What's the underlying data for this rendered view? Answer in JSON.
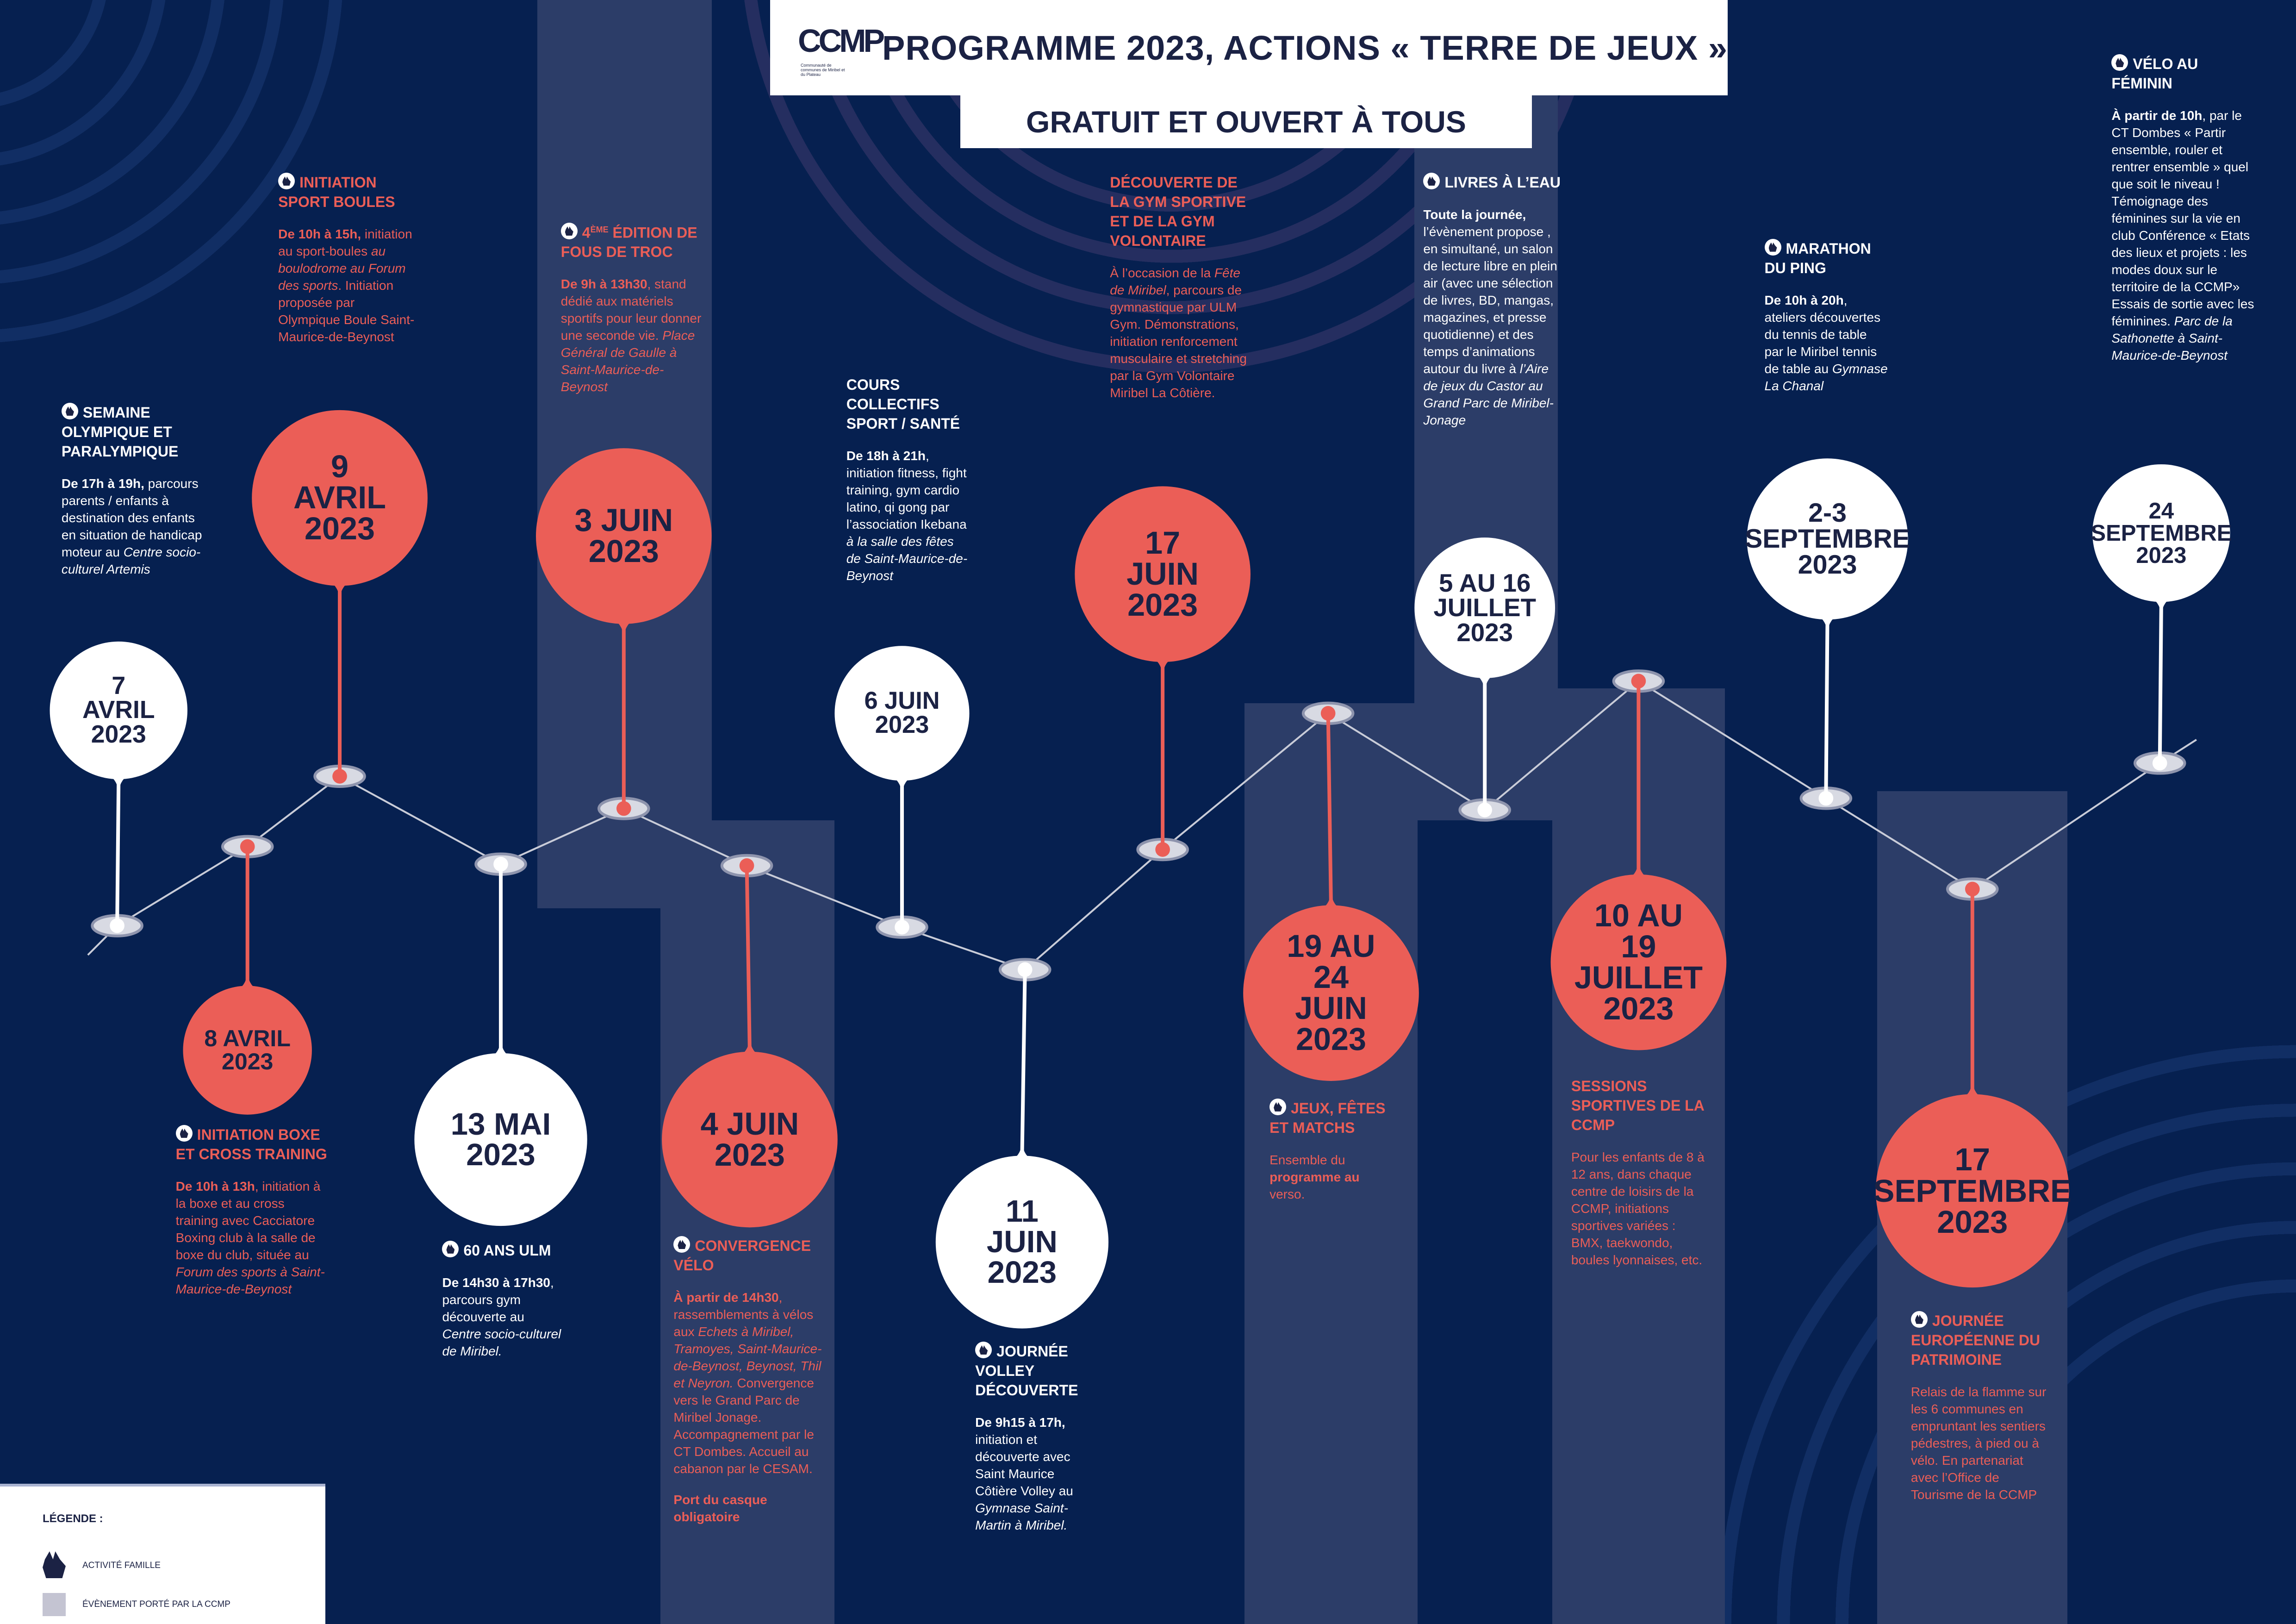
{
  "header": {
    "logo_text": "CCMP",
    "logo_subtext": "Communauté de communes de Miribel et du Plateau",
    "title": "PROGRAMME 2023, ACTIONS « TERRE DE JEUX »",
    "subtitle": "GRATUIT ET OUVERT À TOUS"
  },
  "colors": {
    "background": "#062050",
    "band": "#2c3d68",
    "coral": "#eb5e57",
    "white": "#ffffff",
    "dark": "#1b2244"
  },
  "dates": [
    {
      "lines": [
        "7",
        "AVRIL",
        "2023"
      ],
      "color": "white"
    },
    {
      "lines": [
        "8 AVRIL",
        "2023"
      ],
      "color": "coral"
    },
    {
      "lines": [
        "9",
        "AVRIL",
        "2023"
      ],
      "color": "coral"
    },
    {
      "lines": [
        "13 MAI",
        "2023"
      ],
      "color": "white"
    },
    {
      "lines": [
        "3 JUIN",
        "2023"
      ],
      "color": "coral"
    },
    {
      "lines": [
        "4 JUIN",
        "2023"
      ],
      "color": "coral"
    },
    {
      "lines": [
        "6 JUIN",
        "2023"
      ],
      "color": "white"
    },
    {
      "lines": [
        "11",
        "JUIN",
        "2023"
      ],
      "color": "white"
    },
    {
      "lines": [
        "17",
        "JUIN",
        "2023"
      ],
      "color": "coral"
    },
    {
      "lines": [
        "19 AU",
        "24",
        "JUIN",
        "2023"
      ],
      "color": "coral"
    },
    {
      "lines": [
        "5 AU 16",
        "JUILLET",
        "2023"
      ],
      "color": "white"
    },
    {
      "lines": [
        "10 AU",
        "19",
        "JUILLET",
        "2023"
      ],
      "color": "coral"
    },
    {
      "lines": [
        "2-3",
        "SEPTEMBRE",
        "2023"
      ],
      "color": "white"
    },
    {
      "lines": [
        "17",
        "SEPTEMBRE",
        "2023"
      ],
      "color": "coral"
    },
    {
      "lines": [
        "24",
        "SEPTEMBRE",
        "2023"
      ],
      "color": "white"
    }
  ],
  "activities": [
    {
      "title": "SEMAINE OLYMPIQUE ET PARALYMPIQUE",
      "family": true,
      "color": "white",
      "body": [
        {
          "s": "b",
          "t": "De 17h à 19h,"
        },
        {
          "t": " parcours parents / enfants à destination des enfants en situation de handicap moteur au "
        },
        {
          "s": "i",
          "t": "Centre socio-culturel Artemis"
        }
      ]
    },
    {
      "title": "INITIATION SPORT BOULES",
      "family": true,
      "color": "coral",
      "body": [
        {
          "s": "b",
          "t": "De 10h à 15h,"
        },
        {
          "t": " initiation au sport-boules "
        },
        {
          "s": "i",
          "t": "au boulodrome au Forum des sports"
        },
        {
          "t": ". Initiation proposée par Olympique Boule Saint-Maurice-de-Beynost"
        }
      ]
    },
    {
      "title_prefix": "4",
      "title_sup": "ÈME",
      "title": " ÉDITION DE FOUS DE TROC",
      "family": true,
      "color": "coral",
      "body": [
        {
          "s": "b",
          "t": "De 9h à 13h30"
        },
        {
          "t": ", stand dédié aux matériels sportifs pour leur donner une seconde vie. "
        },
        {
          "s": "i",
          "t": "Place Général de Gaulle à Saint-Maurice-de-Beynost"
        }
      ]
    },
    {
      "title": "COURS COLLECTIFS SPORT / SANTÉ",
      "family": false,
      "color": "white",
      "body": [
        {
          "s": "b",
          "t": "De 18h à 21h"
        },
        {
          "t": ", initiation fitness, fight training, gym cardio latino, qi gong par l’association Ikebana "
        },
        {
          "s": "i",
          "t": "à la salle des fêtes de Saint-Maurice-de-Beynost"
        }
      ]
    },
    {
      "title": "DÉCOUVERTE DE LA GYM SPORTIVE ET DE LA GYM VOLONTAIRE",
      "family": false,
      "color": "coral",
      "body": [
        {
          "t": "À l’occasion de la "
        },
        {
          "s": "i",
          "t": "Fête de Miribel"
        },
        {
          "t": ", parcours de gymnastique par ULM Gym. Démonstrations, initiation renforcement musculaire et stretching par la Gym Volontaire Miribel La Côtière."
        }
      ]
    },
    {
      "title": "LIVRES À L’EAU",
      "family": true,
      "color": "white",
      "body": [
        {
          "s": "b",
          "t": "Toute la journée,"
        },
        {
          "t": " l’évènement propose , en simultané, un salon de lecture libre en plein air (avec une sélection de livres, BD, mangas, magazines, et presse quotidienne) et des temps d’animations autour du livre à "
        },
        {
          "s": "i",
          "t": "l’Aire de jeux du Castor au Grand Parc de Miribel-Jonage"
        }
      ]
    },
    {
      "title": "MARATHON DU PING",
      "family": true,
      "color": "white",
      "body": [
        {
          "s": "b",
          "t": "De 10h à 20h"
        },
        {
          "t": ", ateliers découvertes du tennis de table par le Miribel tennis de table au "
        },
        {
          "s": "i",
          "t": "Gymnase La Chanal"
        }
      ]
    },
    {
      "title": "VÉLO AU FÉMININ",
      "family": true,
      "color": "white",
      "body": [
        {
          "s": "b",
          "t": "À partir de 10h"
        },
        {
          "t": ", par le CT Dombes « Partir ensemble, rouler et rentrer ensemble » quel que soit le niveau ! Témoignage des féminines sur la vie en club Conférence « Etats des lieux et projets : les modes doux sur le territoire de la CCMP» Essais de sortie avec les féminines. "
        },
        {
          "s": "i",
          "t": "Parc de la Sathonette à Saint-Maurice-de-Beynost"
        }
      ]
    },
    {
      "title": "INITIATION BOXE ET CROSS TRAINING",
      "family": true,
      "color": "coral",
      "body": [
        {
          "s": "b",
          "t": "De 10h à 13h"
        },
        {
          "t": ", initiation à la boxe et au cross training avec Cacciatore Boxing club à la salle de boxe du club, située au "
        },
        {
          "s": "i",
          "t": "Forum des sports à Saint-Maurice-de-Beynost"
        }
      ]
    },
    {
      "title": "60 ANS ULM",
      "family": true,
      "color": "white",
      "body": [
        {
          "s": "b",
          "t": "De 14h30 à 17h30"
        },
        {
          "t": ", parcours gym découverte au "
        },
        {
          "s": "i",
          "t": "Centre socio-culturel de Miribel."
        }
      ]
    },
    {
      "title": "CONVERGENCE VÉLO",
      "family": true,
      "color": "coral",
      "body": [
        {
          "s": "b",
          "t": "À partir de 14h30"
        },
        {
          "t": ", rassemblements à vélos aux "
        },
        {
          "s": "i",
          "t": "Echets à Miribel, Tramoyes, Saint-Maurice-de-Beynost, Beynost, Thil et Neyron."
        },
        {
          "t": " Convergence vers le Grand Parc de Miribel Jonage. Accompagnement par le CT Dombes. Accueil au cabanon par le CESAM."
        }
      ],
      "note": "Port du casque obligatoire"
    },
    {
      "title": "JOURNÉE VOLLEY DÉCOUVERTE",
      "family": true,
      "color": "white",
      "body": [
        {
          "s": "b",
          "t": "De 9h15 à 17h,"
        },
        {
          "t": " initiation et découverte avec Saint Maurice Côtière Volley au "
        },
        {
          "s": "i",
          "t": "Gymnase Saint-Martin à Miribel."
        }
      ]
    },
    {
      "title": "JEUX, FÊTES ET MATCHS",
      "family": true,
      "color": "coral",
      "body": [
        {
          "t": "Ensemble du "
        },
        {
          "s": "b",
          "t": "programme au"
        },
        {
          "t": " verso."
        }
      ]
    },
    {
      "title": "SESSIONS SPORTIVES DE LA CCMP",
      "family": false,
      "color": "coral",
      "body": [
        {
          "t": "Pour les enfants de 8 à 12 ans, dans chaque centre de loisirs de la CCMP, initiations sportives variées : BMX, taekwondo, boules lyonnaises, etc."
        }
      ]
    },
    {
      "title": "JOURNÉE EUROPÉENNE DU PATRIMOINE",
      "family": true,
      "color": "coral",
      "body": [
        {
          "t": "Relais de la flamme sur les 6 communes en empruntant les sentiers pédestres, à pied ou à vélo. En partenariat avec l’Office de Tourisme de la CCMP"
        }
      ]
    }
  ],
  "legend": {
    "title": "LÉGENDE :",
    "items": [
      {
        "icon": "family-icon",
        "label": "ACTIVITÉ FAMILLE"
      },
      {
        "icon": "ccmp-event-swatch",
        "label": "ÉVÈNEMENT PORTÉ PAR LA CCMP"
      }
    ]
  }
}
